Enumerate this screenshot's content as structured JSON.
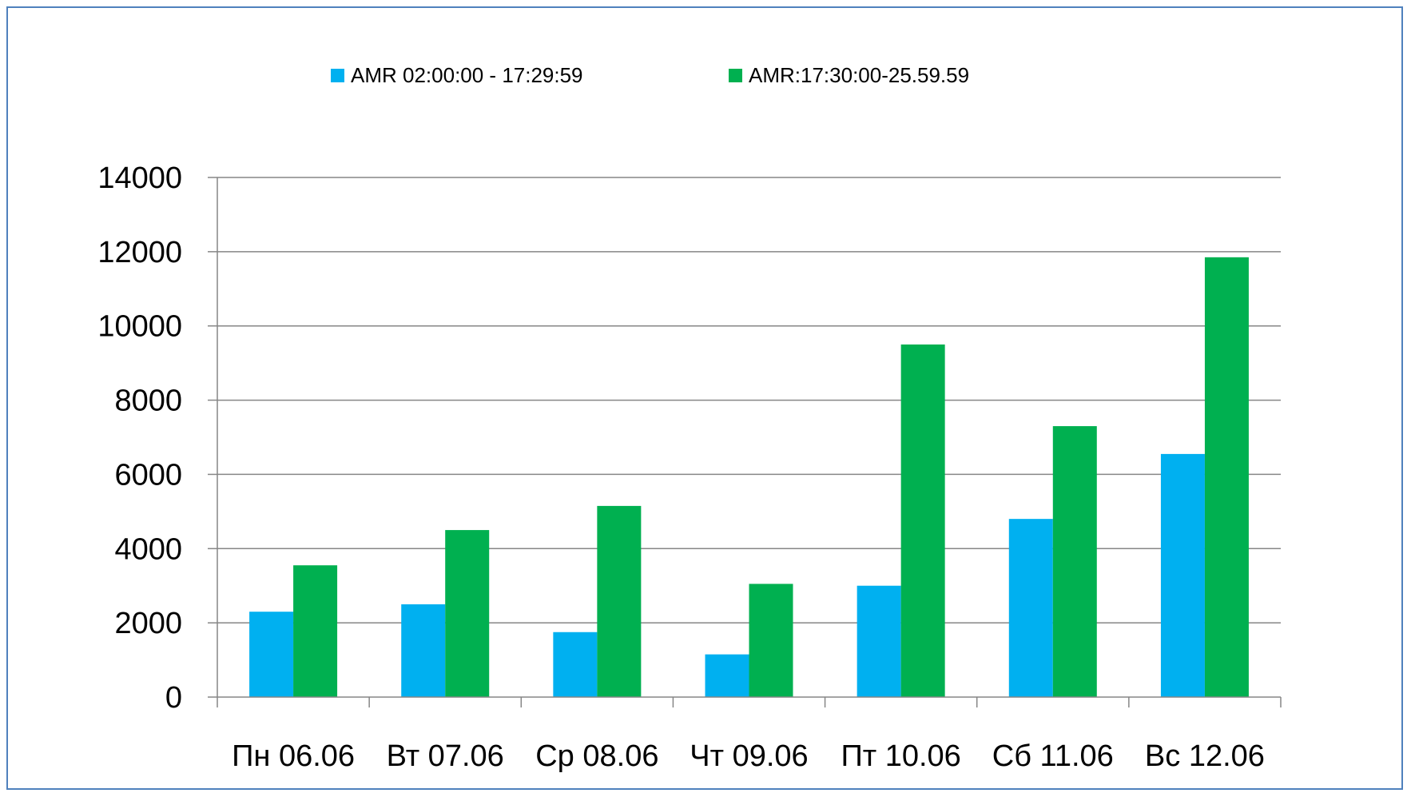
{
  "chart_data": {
    "type": "bar",
    "title": "",
    "xlabel": "",
    "ylabel": "",
    "categories": [
      "Пн 06.06",
      "Вт 07.06",
      "Ср 08.06",
      "Чт 09.06",
      "Пт 10.06",
      "Сб 11.06",
      "Вс 12.06"
    ],
    "series": [
      {
        "name": "AMR 02:00:00 - 17:29:59",
        "color": "#00b0f0",
        "values": [
          2300,
          2500,
          1750,
          1150,
          3000,
          4800,
          6550
        ]
      },
      {
        "name": "AMR:17:30:00-25.59.59",
        "color": "#00b050",
        "values": [
          3550,
          4500,
          5150,
          3050,
          9500,
          7300,
          11850
        ]
      }
    ],
    "ylim": [
      0,
      14000
    ],
    "yticks": [
      0,
      2000,
      4000,
      6000,
      8000,
      10000,
      12000,
      14000
    ],
    "grid": true,
    "legend_position": "top"
  }
}
